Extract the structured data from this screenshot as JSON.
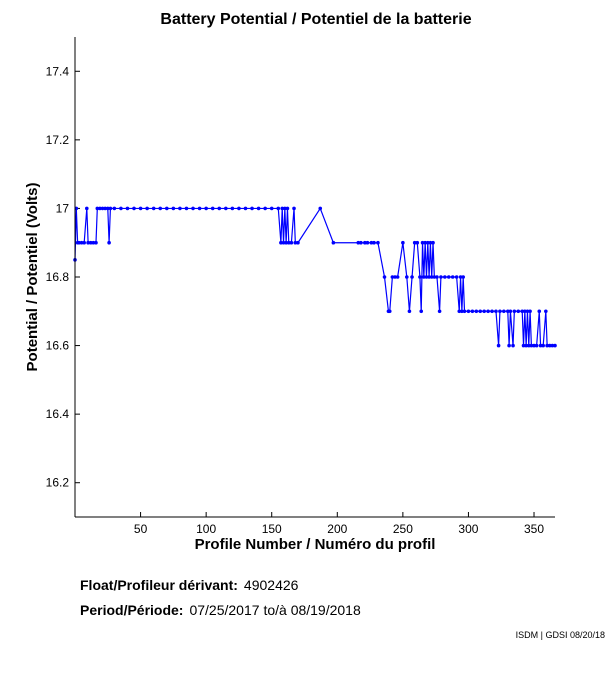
{
  "chart_data": {
    "type": "line",
    "title": "Battery Potential / Potentiel de la batterie",
    "xlabel": "Profile Number / Numéro du profil",
    "ylabel": "Potential / Potentiel (Volts)",
    "xlim": [
      0,
      366
    ],
    "ylim": [
      16.1,
      17.5
    ],
    "xticks": [
      50,
      100,
      150,
      200,
      250,
      300,
      350
    ],
    "yticks": [
      16.2,
      16.4,
      16.6,
      16.8,
      17,
      17.2,
      17.4
    ],
    "ytick_labels": [
      "16.2",
      "16.4",
      "16.6",
      "16.8",
      "17",
      "17.2",
      "17.4"
    ],
    "grid": false,
    "series": [
      {
        "name": "Battery Potential",
        "color": "#0000ff",
        "points": [
          [
            0,
            16.85
          ],
          [
            1,
            17.0
          ],
          [
            2,
            16.9
          ],
          [
            3,
            16.9
          ],
          [
            5,
            16.9
          ],
          [
            7,
            16.9
          ],
          [
            9,
            17.0
          ],
          [
            10,
            16.9
          ],
          [
            12,
            16.9
          ],
          [
            14,
            16.9
          ],
          [
            16,
            16.9
          ],
          [
            17,
            17.0
          ],
          [
            19,
            17.0
          ],
          [
            21,
            17.0
          ],
          [
            23,
            17.0
          ],
          [
            25,
            17.0
          ],
          [
            26,
            16.9
          ],
          [
            27,
            17.0
          ],
          [
            30,
            17.0
          ],
          [
            35,
            17.0
          ],
          [
            40,
            17.0
          ],
          [
            45,
            17.0
          ],
          [
            50,
            17.0
          ],
          [
            55,
            17.0
          ],
          [
            60,
            17.0
          ],
          [
            65,
            17.0
          ],
          [
            70,
            17.0
          ],
          [
            75,
            17.0
          ],
          [
            80,
            17.0
          ],
          [
            85,
            17.0
          ],
          [
            90,
            17.0
          ],
          [
            95,
            17.0
          ],
          [
            100,
            17.0
          ],
          [
            105,
            17.0
          ],
          [
            110,
            17.0
          ],
          [
            115,
            17.0
          ],
          [
            120,
            17.0
          ],
          [
            125,
            17.0
          ],
          [
            130,
            17.0
          ],
          [
            135,
            17.0
          ],
          [
            140,
            17.0
          ],
          [
            145,
            17.0
          ],
          [
            150,
            17.0
          ],
          [
            155,
            17.0
          ],
          [
            157,
            16.9
          ],
          [
            158,
            17.0
          ],
          [
            159,
            16.9
          ],
          [
            160,
            17.0
          ],
          [
            161,
            16.9
          ],
          [
            162,
            17.0
          ],
          [
            163,
            16.9
          ],
          [
            165,
            16.9
          ],
          [
            167,
            17.0
          ],
          [
            168,
            16.9
          ],
          [
            170,
            16.9
          ],
          [
            187,
            17.0
          ],
          [
            197,
            16.9
          ],
          [
            216,
            16.9
          ],
          [
            218,
            16.9
          ],
          [
            221,
            16.9
          ],
          [
            223,
            16.9
          ],
          [
            226,
            16.9
          ],
          [
            228,
            16.9
          ],
          [
            231,
            16.9
          ],
          [
            236,
            16.8
          ],
          [
            239,
            16.7
          ],
          [
            240,
            16.7
          ],
          [
            242,
            16.8
          ],
          [
            244,
            16.8
          ],
          [
            246,
            16.8
          ],
          [
            250,
            16.9
          ],
          [
            253,
            16.8
          ],
          [
            255,
            16.7
          ],
          [
            257,
            16.8
          ],
          [
            259,
            16.9
          ],
          [
            261,
            16.9
          ],
          [
            263,
            16.8
          ],
          [
            264,
            16.7
          ],
          [
            265,
            16.9
          ],
          [
            266,
            16.8
          ],
          [
            267,
            16.9
          ],
          [
            268,
            16.8
          ],
          [
            269,
            16.9
          ],
          [
            270,
            16.8
          ],
          [
            271,
            16.9
          ],
          [
            272,
            16.8
          ],
          [
            273,
            16.9
          ],
          [
            274,
            16.8
          ],
          [
            276,
            16.8
          ],
          [
            278,
            16.7
          ],
          [
            279,
            16.8
          ],
          [
            282,
            16.8
          ],
          [
            285,
            16.8
          ],
          [
            288,
            16.8
          ],
          [
            291,
            16.8
          ],
          [
            293,
            16.7
          ],
          [
            294,
            16.8
          ],
          [
            295,
            16.7
          ],
          [
            296,
            16.8
          ],
          [
            297,
            16.7
          ],
          [
            300,
            16.7
          ],
          [
            303,
            16.7
          ],
          [
            306,
            16.7
          ],
          [
            309,
            16.7
          ],
          [
            312,
            16.7
          ],
          [
            315,
            16.7
          ],
          [
            318,
            16.7
          ],
          [
            321,
            16.7
          ],
          [
            323,
            16.6
          ],
          [
            324,
            16.7
          ],
          [
            327,
            16.7
          ],
          [
            330,
            16.7
          ],
          [
            331,
            16.6
          ],
          [
            332,
            16.7
          ],
          [
            334,
            16.6
          ],
          [
            335,
            16.7
          ],
          [
            338,
            16.7
          ],
          [
            341,
            16.7
          ],
          [
            342,
            16.6
          ],
          [
            343,
            16.7
          ],
          [
            344,
            16.6
          ],
          [
            345,
            16.7
          ],
          [
            346,
            16.6
          ],
          [
            347,
            16.7
          ],
          [
            348,
            16.6
          ],
          [
            350,
            16.6
          ],
          [
            352,
            16.6
          ],
          [
            354,
            16.7
          ],
          [
            355,
            16.6
          ],
          [
            357,
            16.6
          ],
          [
            359,
            16.7
          ],
          [
            360,
            16.6
          ],
          [
            362,
            16.6
          ],
          [
            364,
            16.6
          ],
          [
            366,
            16.6
          ]
        ]
      }
    ]
  },
  "info": {
    "float_label": "Float/Profileur dérivant:",
    "float_value": "4902426",
    "period_label": "Period/Période:",
    "period_start": "07/25/2017",
    "period_sep": "to/à",
    "period_end": "08/19/2018"
  },
  "credit": "ISDM | GDSI 08/20/18"
}
